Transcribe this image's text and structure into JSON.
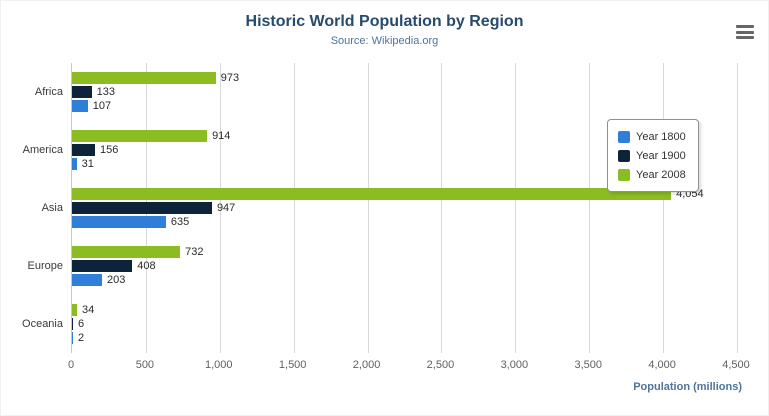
{
  "header": {
    "title": "Historic World Population by Region",
    "subtitle": "Source: Wikipedia.org"
  },
  "export_menu": {
    "icon": "hamburger-icon"
  },
  "chart_data": {
    "type": "bar",
    "orientation": "horizontal",
    "categories": [
      "Africa",
      "America",
      "Asia",
      "Europe",
      "Oceania"
    ],
    "series": [
      {
        "name": "Year 1800",
        "color": "#2f7ed8",
        "values": [
          107,
          31,
          635,
          203,
          2
        ]
      },
      {
        "name": "Year 1900",
        "color": "#0d233a",
        "values": [
          133,
          156,
          947,
          408,
          6
        ]
      },
      {
        "name": "Year 2008",
        "color": "#8bbc21",
        "values": [
          973,
          914,
          4054,
          732,
          34
        ]
      }
    ],
    "bar_order_top_to_bottom": [
      "Year 2008",
      "Year 1900",
      "Year 1800"
    ],
    "xlabel": "Population (millions)",
    "xlim": [
      0,
      4500
    ],
    "x_ticks": [
      "0",
      "500",
      "1,000",
      "1,500",
      "2,000",
      "2,500",
      "3,000",
      "3,500",
      "4,000",
      "4,500"
    ],
    "grid": true,
    "data_labels": true,
    "legend": {
      "position": "right",
      "entries": [
        "Year 1800",
        "Year 1900",
        "Year 2008"
      ]
    },
    "colors": {
      "title": "#274b6d",
      "subtitle": "#4d759e",
      "gridline": "#d8d8d8",
      "tick_label": "#606060",
      "axis_title": "#4d759e"
    }
  }
}
